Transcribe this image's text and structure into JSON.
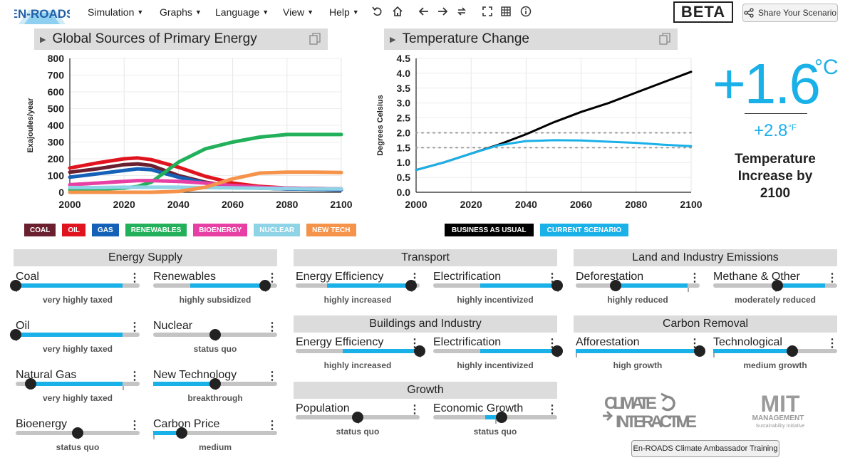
{
  "app": {
    "logo_text": "EN-ROADS",
    "beta": "BETA",
    "share_label": "Share Your Scenario"
  },
  "menu": [
    "Simulation",
    "Graphs",
    "Language",
    "View",
    "Help"
  ],
  "colors": {
    "accent": "#1ab0e8",
    "coal": "#6b2030",
    "oil": "#e0141e",
    "gas": "#1561b8",
    "renewables": "#22b15a",
    "bioenergy": "#e83fa4",
    "nuclear": "#8fd3e6",
    "new_tech": "#f5934a",
    "bau": "#000000"
  },
  "graph1": {
    "title": "Global Sources of Primary Energy",
    "chart_data": {
      "type": "line",
      "title": "Global Sources of Primary Energy",
      "ylabel": "Exajoules/year",
      "xlabel": "",
      "x": [
        2000,
        2010,
        2020,
        2025,
        2030,
        2040,
        2050,
        2060,
        2070,
        2080,
        2090,
        2100
      ],
      "xticks": [
        "2000",
        "2020",
        "2040",
        "2060",
        "2080",
        "2100"
      ],
      "yticks": [
        "0",
        "100",
        "200",
        "300",
        "400",
        "500",
        "600",
        "700",
        "800"
      ],
      "ylim": [
        0,
        800
      ],
      "series": [
        {
          "name": "COAL",
          "color": "#6b2030",
          "values": [
            120,
            140,
            165,
            170,
            160,
            100,
            60,
            35,
            25,
            20,
            18,
            15
          ]
        },
        {
          "name": "OIL",
          "color": "#e0141e",
          "values": [
            145,
            175,
            200,
            205,
            195,
            150,
            95,
            55,
            35,
            25,
            22,
            20
          ]
        },
        {
          "name": "GAS",
          "color": "#1561b8",
          "values": [
            90,
            110,
            130,
            140,
            135,
            90,
            55,
            35,
            25,
            20,
            18,
            15
          ]
        },
        {
          "name": "RENEWABLES",
          "color": "#22b15a",
          "values": [
            15,
            18,
            25,
            35,
            60,
            180,
            260,
            300,
            330,
            345,
            345,
            345
          ]
        },
        {
          "name": "BIOENERGY",
          "color": "#e83fa4",
          "values": [
            45,
            55,
            65,
            70,
            70,
            65,
            55,
            40,
            30,
            25,
            22,
            20
          ]
        },
        {
          "name": "NUCLEAR",
          "color": "#8fd3e6",
          "values": [
            28,
            28,
            30,
            30,
            30,
            30,
            28,
            26,
            24,
            22,
            20,
            20
          ]
        },
        {
          "name": "NEW TECH",
          "color": "#f5934a",
          "values": [
            0,
            0,
            0,
            0,
            0,
            5,
            30,
            80,
            115,
            120,
            120,
            118
          ]
        }
      ]
    },
    "legend": [
      "COAL",
      "OIL",
      "GAS",
      "RENEWABLES",
      "BIOENERGY",
      "NUCLEAR",
      "NEW TECH"
    ]
  },
  "graph2": {
    "title": "Temperature Change",
    "chart_data": {
      "type": "line",
      "title": "Temperature Change",
      "ylabel": "Degrees Celsius",
      "xlabel": "",
      "x": [
        2000,
        2010,
        2020,
        2030,
        2040,
        2050,
        2060,
        2070,
        2080,
        2090,
        2100
      ],
      "xticks": [
        "2000",
        "2020",
        "2040",
        "2060",
        "2080",
        "2100"
      ],
      "yticks": [
        "0.0",
        "0.5",
        "1.0",
        "1.5",
        "2.0",
        "2.5",
        "3.0",
        "3.5",
        "4.0",
        "4.5"
      ],
      "ylim": [
        0,
        4.5
      ],
      "reference_lines": [
        1.5,
        2.0
      ],
      "series": [
        {
          "name": "BUSINESS AS USUAL",
          "color": "#000000",
          "values": [
            0.75,
            1.0,
            1.3,
            1.6,
            1.95,
            2.35,
            2.7,
            3.0,
            3.35,
            3.7,
            4.05
          ]
        },
        {
          "name": "CURRENT SCENARIO",
          "color": "#1ab0e8",
          "values": [
            0.75,
            1.0,
            1.3,
            1.58,
            1.72,
            1.75,
            1.74,
            1.7,
            1.66,
            1.6,
            1.55
          ]
        }
      ]
    },
    "legend": [
      "BUSINESS AS USUAL",
      "CURRENT SCENARIO"
    ]
  },
  "temperature": {
    "value": "+1.6",
    "unit": "°C",
    "value_f": "+2.8",
    "unit_f": "°F",
    "label": "Temperature Increase by 2100"
  },
  "sections": {
    "energy_supply": "Energy Supply",
    "transport": "Transport",
    "buildings": "Buildings and Industry",
    "growth": "Growth",
    "land": "Land and Industry Emissions",
    "carbon_removal": "Carbon Removal"
  },
  "sliders": {
    "coal": {
      "name": "Coal",
      "status": "very highly taxed",
      "level": 0.0,
      "fill_from": 0.0,
      "fill_to": 0.86
    },
    "renewables": {
      "name": "Renewables",
      "status": "highly subsidized",
      "level": 0.9,
      "fill_from": 0.3,
      "fill_to": 0.9
    },
    "oil": {
      "name": "Oil",
      "status": "very highly taxed",
      "level": 0.0,
      "fill_from": 0.0,
      "fill_to": 0.86
    },
    "nuclear": {
      "name": "Nuclear",
      "status": "status quo",
      "level": 0.5,
      "fill_from": 0.5,
      "fill_to": 0.5
    },
    "natural_gas": {
      "name": "Natural Gas",
      "status": "very highly taxed",
      "level": 0.12,
      "fill_from": 0.12,
      "fill_to": 0.86
    },
    "new_tech": {
      "name": "New Technology",
      "status": "breakthrough",
      "level": 0.5,
      "fill_from": 0.0,
      "fill_to": 0.5
    },
    "bioenergy": {
      "name": "Bioenergy",
      "status": "status quo",
      "level": 0.5,
      "fill_from": 0.5,
      "fill_to": 0.5
    },
    "carbon_price": {
      "name": "Carbon Price",
      "status": "medium",
      "level": 0.23,
      "fill_from": 0.0,
      "fill_to": 0.23
    },
    "transport_ee": {
      "name": "Energy Efficiency",
      "status": "highly increased",
      "level": 0.93,
      "fill_from": 0.25,
      "fill_to": 0.93
    },
    "transport_el": {
      "name": "Electrification",
      "status": "highly incentivized",
      "level": 1.0,
      "fill_from": 0.38,
      "fill_to": 1.0
    },
    "buildings_ee": {
      "name": "Energy Efficiency",
      "status": "highly increased",
      "level": 1.0,
      "fill_from": 0.38,
      "fill_to": 1.0
    },
    "buildings_el": {
      "name": "Electrification",
      "status": "highly incentivized",
      "level": 1.0,
      "fill_from": 0.38,
      "fill_to": 1.0
    },
    "population": {
      "name": "Population",
      "status": "status quo",
      "level": 0.5,
      "fill_from": 0.5,
      "fill_to": 0.5
    },
    "economic_growth": {
      "name": "Economic Growth",
      "status": "status quo",
      "level": 0.55,
      "fill_from": 0.42,
      "fill_to": 0.55
    },
    "deforestation": {
      "name": "Deforestation",
      "status": "highly reduced",
      "level": 0.32,
      "fill_from": 0.32,
      "fill_to": 0.9
    },
    "methane": {
      "name": "Methane & Other",
      "status": "moderately reduced",
      "level": 0.52,
      "fill_from": 0.52,
      "fill_to": 0.9
    },
    "afforestation": {
      "name": "Afforestation",
      "status": "high growth",
      "level": 1.0,
      "fill_from": 0.0,
      "fill_to": 1.0
    },
    "technological": {
      "name": "Technological",
      "status": "medium growth",
      "level": 0.64,
      "fill_from": 0.0,
      "fill_to": 0.64
    }
  },
  "logos": {
    "ci_line1": "CLIMATE",
    "ci_line2": "INTERACTIVE",
    "mit_line1": "MIT",
    "mit_line2": "MANAGEMENT",
    "mit_line3": "Sustainability Initiative"
  },
  "ambassador_label": "En-ROADS Climate Ambassador Training"
}
